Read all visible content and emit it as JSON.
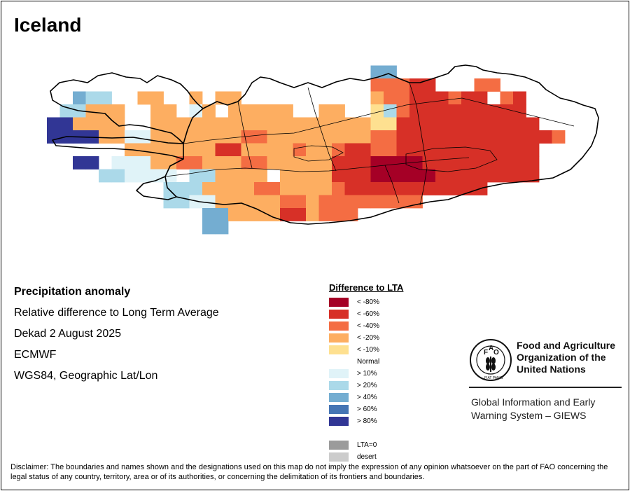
{
  "title": "Iceland",
  "info": {
    "subject": "Precipitation anomaly",
    "measure": "Relative difference to Long Term Average",
    "period": "Dekad 2 August 2025",
    "source": "ECMWF",
    "projection": "WGS84, Geographic Lat/Lon"
  },
  "legend": {
    "title": "Difference to LTA",
    "items": [
      {
        "label": "< -80%",
        "color": "#a50026"
      },
      {
        "label": "< -60%",
        "color": "#d73027"
      },
      {
        "label": "< -40%",
        "color": "#f46d43"
      },
      {
        "label": "< -20%",
        "color": "#fdae61"
      },
      {
        "label": "< -10%",
        "color": "#fee090"
      },
      {
        "label": "Normal",
        "color": "#ffffff"
      },
      {
        "label": "> 10%",
        "color": "#e0f3f8"
      },
      {
        "label": "> 20%",
        "color": "#abd9e9"
      },
      {
        "label": "> 40%",
        "color": "#74add1"
      },
      {
        "label": "> 60%",
        "color": "#4575b4"
      },
      {
        "label": "> 80%",
        "color": "#313695"
      },
      {
        "label": "",
        "color": ""
      },
      {
        "label": "LTA=0",
        "color": "#9b9b9b"
      },
      {
        "label": "desert",
        "color": "#cccccc"
      }
    ]
  },
  "branding": {
    "organization": "Food and Agriculture Organization of the United Nations",
    "system": "Global Information and Early Warning System – GIEWS"
  },
  "disclaimer": "Disclaimer: The boundaries and names shown and the designations used on this map do not imply the expression of any opinion whatsoever on the part of FAO concerning the legal status of any country, territory, area or of its authorities, or concerning the delimitation of its frontiers and boundaries.",
  "map_grid": {
    "rows": [
      "..........................................................",
      "...........................bb.............................",
      "...........................rrrRR...rr.....................",
      "....bcc..dd..d.dd..........OrrRRRrRR.rR...................",
      "...ccddd..dd.ed.ddddd..dd..ocrRRRRRRRRR...................",
      "..HHdddd..dddddddddddddddddooRRRRRRRRRRR..................",
      "..HHHHddeeddOOdddrrddddddOOrrRRRRRRRRRRRRr................",
      "........dddOOddRRddddrddrRRrrRRRRRRRRRRR..................",
      "....HH.eeeddrrdddrrdddddRRRAAAARRRRRRRRR..................",
      "......cceeee.ccdddd.ddddRRRAAAAARRRRRRRR..................",
      "...........cccddddrrddddrRRRRRRRRRRR......................",
      "...........cceedddOOrrdrrrrrrrr...........................",
      "..............bbddOdRRdrrr................................",
      "..............bb..........................................",
      ".........................................................."
    ]
  }
}
